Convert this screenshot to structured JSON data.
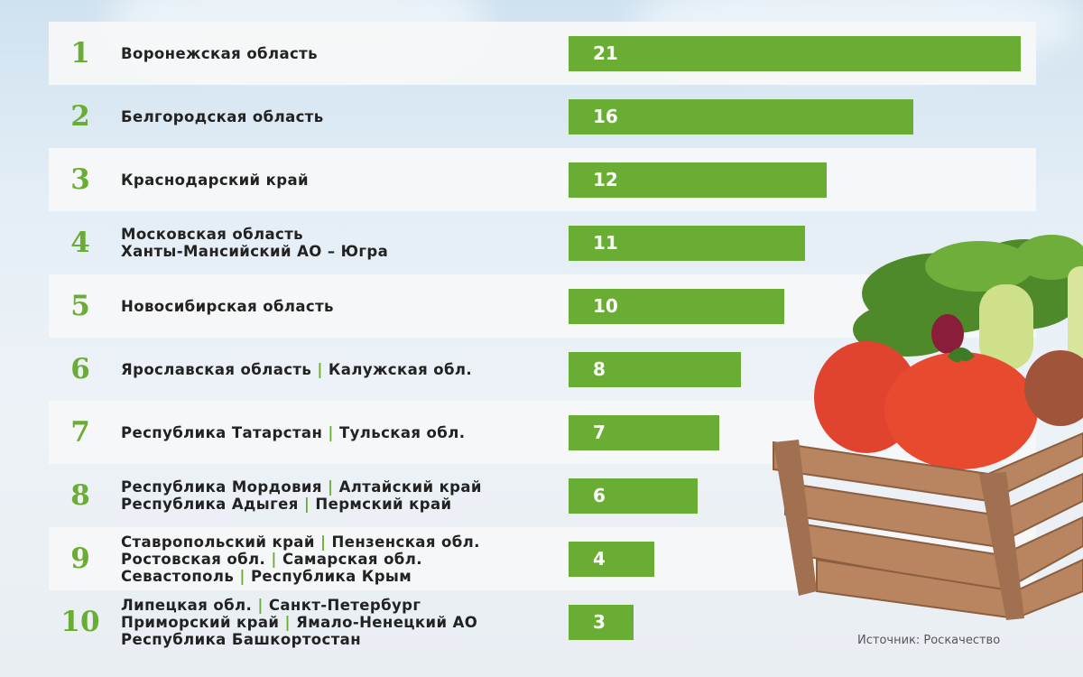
{
  "source": "Источник: Роскачество",
  "chart_data": {
    "type": "bar",
    "orientation": "horizontal",
    "title": "",
    "xlabel": "",
    "ylabel": "",
    "xlim": [
      0,
      21
    ],
    "grid": false,
    "legend": "none",
    "colors": {
      "bar": "#6aad34",
      "rank": "#6aad34",
      "row_bg": "#f6f7f8",
      "text": "#222222"
    },
    "rows": [
      {
        "rank": "1",
        "lines": [
          [
            "Воронежская область"
          ]
        ],
        "value": 21
      },
      {
        "rank": "2",
        "lines": [
          [
            "Белгородская область"
          ]
        ],
        "value": 16
      },
      {
        "rank": "3",
        "lines": [
          [
            "Краснодарский край"
          ]
        ],
        "value": 12
      },
      {
        "rank": "4",
        "lines": [
          [
            "Московская область"
          ],
          [
            "Ханты-Мансийский АО – Югра"
          ]
        ],
        "value": 11
      },
      {
        "rank": "5",
        "lines": [
          [
            "Новосибирская область"
          ]
        ],
        "value": 10
      },
      {
        "rank": "6",
        "lines": [
          [
            "Ярославская область",
            "Калужская обл."
          ]
        ],
        "value": 8
      },
      {
        "rank": "7",
        "lines": [
          [
            "Республика Татарстан",
            "Тульская обл."
          ]
        ],
        "value": 7
      },
      {
        "rank": "8",
        "lines": [
          [
            "Республика Мордовия",
            "Алтайский край"
          ],
          [
            "Республика Адыгея",
            "Пермский край"
          ]
        ],
        "value": 6
      },
      {
        "rank": "9",
        "lines": [
          [
            "Ставропольский край",
            "Пензенская обл."
          ],
          [
            "Ростовская обл.",
            "Самарская обл."
          ],
          [
            "Севастополь",
            "Республика Крым"
          ]
        ],
        "value": 4
      },
      {
        "rank": "10",
        "lines": [
          [
            "Липецкая обл.",
            "Санкт-Петербург"
          ],
          [
            "Приморский край",
            "Ямало-Ненецкий АО"
          ],
          [
            "Республика Башкортостан"
          ]
        ],
        "value": 3
      }
    ]
  },
  "illustration": {
    "icon": "vegetable-crate-icon"
  }
}
